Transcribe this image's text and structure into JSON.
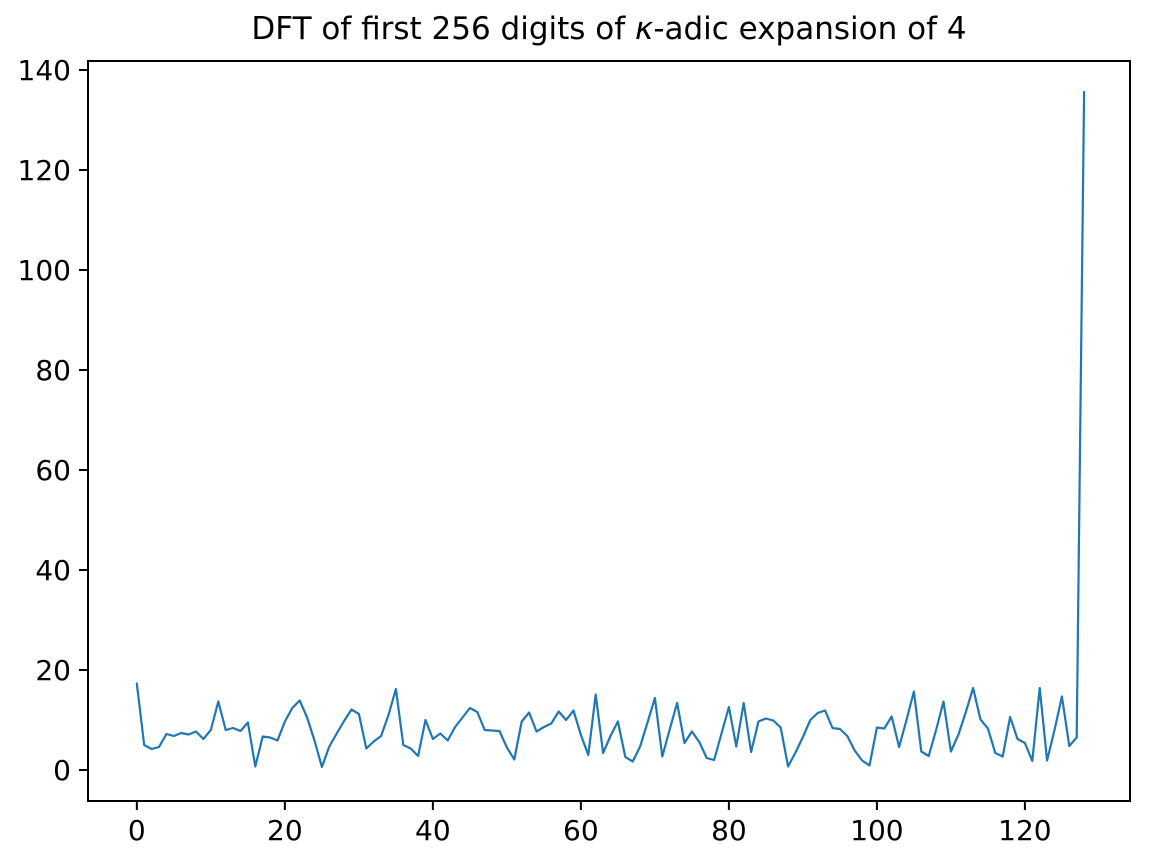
{
  "figure": {
    "title_prefix": "DFT of first 256 digits of ",
    "title_kappa": "κ",
    "title_suffix": "-adic expansion of 4",
    "background_color": "#ffffff",
    "text_color": "#000000"
  },
  "chart_data": {
    "type": "line",
    "title": "DFT of first 256 digits of κ-adic expansion of 4",
    "xlabel": "",
    "ylabel": "",
    "grid": false,
    "legend": null,
    "line_color": "#1f77b4",
    "line_width": 2.2,
    "x_start": 0,
    "x_step": 1,
    "xlim": [
      -6.6,
      134.2
    ],
    "ylim": [
      -6.2,
      141.8
    ],
    "xticks": [
      0,
      20,
      40,
      60,
      80,
      100,
      120
    ],
    "yticks": [
      0,
      20,
      40,
      60,
      80,
      100,
      120,
      140
    ],
    "values": [
      17.3,
      5.0,
      4.2,
      4.6,
      7.2,
      6.8,
      7.4,
      7.1,
      7.7,
      6.2,
      8.0,
      13.7,
      8.0,
      8.4,
      7.8,
      9.5,
      0.7,
      6.7,
      6.5,
      5.9,
      9.7,
      12.4,
      13.9,
      10.5,
      5.9,
      0.6,
      4.7,
      7.3,
      9.8,
      12.1,
      11.2,
      4.3,
      5.7,
      6.8,
      11.0,
      16.2,
      5.0,
      4.3,
      2.8,
      10.0,
      6.2,
      7.3,
      5.9,
      8.6,
      10.5,
      12.4,
      11.6,
      8.0,
      7.9,
      7.8,
      4.5,
      2.1,
      9.7,
      11.5,
      7.7,
      8.6,
      9.3,
      11.7,
      10.0,
      11.9,
      7.0,
      3.0,
      15.1,
      3.4,
      6.8,
      9.7,
      2.6,
      1.7,
      4.7,
      9.5,
      14.4,
      2.7,
      8.1,
      13.4,
      5.4,
      7.7,
      5.6,
      2.4,
      2.0,
      7.3,
      12.6,
      4.7,
      13.4,
      3.6,
      9.7,
      10.3,
      9.9,
      8.5,
      0.7,
      3.5,
      6.6,
      10.0,
      11.4,
      11.9,
      8.4,
      8.2,
      6.8,
      3.9,
      1.9,
      0.9,
      8.5,
      8.3,
      10.7,
      4.6,
      10.0,
      15.7,
      3.7,
      2.8,
      8.0,
      13.7,
      3.7,
      7.0,
      11.5,
      16.4,
      10.1,
      8.3,
      3.4,
      2.7,
      10.6,
      6.2,
      5.4,
      1.8,
      16.4,
      1.9,
      8.0,
      14.7,
      4.8,
      6.5,
      135.6
    ]
  }
}
